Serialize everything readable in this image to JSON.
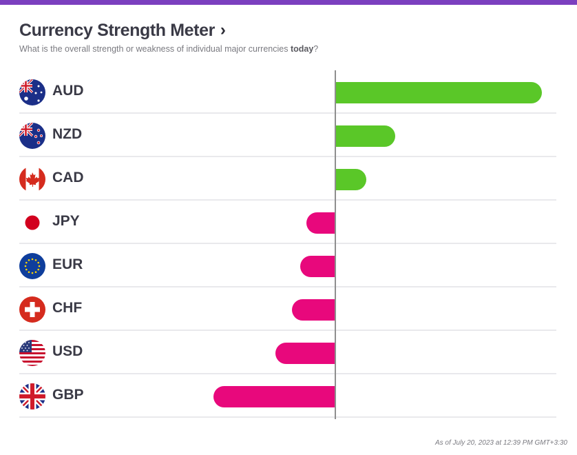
{
  "header": {
    "title": "Currency Strength Meter",
    "title_chevron": "›",
    "subtitle_prefix": "What is the overall strength or weakness of individual major currencies ",
    "subtitle_bold": "today",
    "subtitle_suffix": "?"
  },
  "chart_data": {
    "type": "bar",
    "orientation": "horizontal",
    "categories": [
      "AUD",
      "NZD",
      "CAD",
      "JPY",
      "EUR",
      "CHF",
      "USD",
      "GBP"
    ],
    "values": [
      100,
      29,
      15,
      -14,
      -17,
      -21,
      -29,
      -59
    ],
    "colors": {
      "positive": "#5ac728",
      "negative": "#e8087c",
      "axis": "#8e8e8e"
    }
  },
  "flags": [
    "australia-flag",
    "new-zealand-flag",
    "canada-flag",
    "japan-flag",
    "eu-flag",
    "switzerland-flag",
    "usa-flag",
    "uk-flag"
  ],
  "footer": "As of July 20, 2023 at 12:39 PM GMT+3:30"
}
